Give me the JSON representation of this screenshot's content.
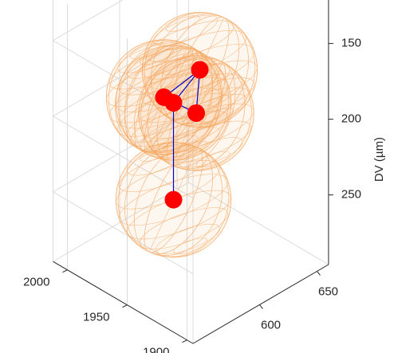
{
  "chart_data": {
    "type": "scatter3d",
    "zlabel": "DV (µm)",
    "x": [
      1945,
      1975,
      1967,
      1948,
      1967
    ],
    "y": [
      600,
      600,
      600,
      600,
      600
    ],
    "z": [
      164,
      196,
      196,
      194,
      260
    ],
    "color": "#ff0000",
    "sphere_color": "#f5a55c",
    "sphere_radius": 38,
    "edge_color": "#0000cc",
    "edges": [
      [
        0,
        1
      ],
      [
        0,
        2
      ],
      [
        0,
        3
      ],
      [
        1,
        3
      ],
      [
        2,
        4
      ]
    ],
    "xlim": [
      1895,
      2012
    ],
    "ylim": [
      542,
      660
    ],
    "zlim": [
      120,
      296
    ],
    "xticks": [
      1900,
      1950,
      2000
    ],
    "yticks": [
      600,
      650
    ],
    "zticks": [
      150,
      200,
      250
    ],
    "zreverse": true
  }
}
